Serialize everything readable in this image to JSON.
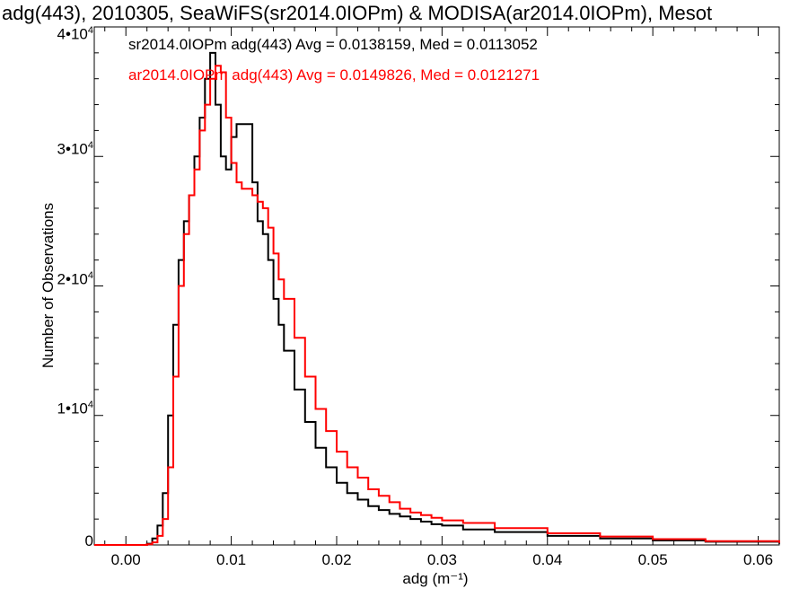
{
  "chart_data": {
    "type": "line",
    "title": "adg(443), 2010305, SeaWiFS(sr2014.0IOPm) & MODISA(ar2014.0IOPm), Mesot",
    "xlabel": "adg (m⁻¹)",
    "ylabel": "Number of Observations",
    "xlim": [
      -0.003,
      0.062
    ],
    "ylim": [
      0,
      40000
    ],
    "x_ticks": [
      "0.00",
      "0.01",
      "0.02",
      "0.03",
      "0.04",
      "0.05",
      "0.06"
    ],
    "y_ticks": [
      {
        "mantissa": "0",
        "exp": ""
      },
      {
        "mantissa": "1•10",
        "exp": "4"
      },
      {
        "mantissa": "2•10",
        "exp": "4"
      },
      {
        "mantissa": "3•10",
        "exp": "4"
      },
      {
        "mantissa": "4•10",
        "exp": "4"
      }
    ],
    "legend": {
      "placement": "top-left",
      "entries": [
        "sr2014.0IOPm adg(443) Avg = 0.0138159, Med = 0.0113052",
        "ar2014.0IOPm adg(443) Avg = 0.0149826, Med = 0.0121271"
      ]
    },
    "series": [
      {
        "color": "#000000",
        "x": [
          -0.003,
          0.002,
          0.0025,
          0.003,
          0.0035,
          0.004,
          0.0045,
          0.005,
          0.0055,
          0.006,
          0.0065,
          0.007,
          0.0075,
          0.008,
          0.0085,
          0.009,
          0.0095,
          0.01,
          0.0105,
          0.011,
          0.0115,
          0.012,
          0.0125,
          0.013,
          0.0135,
          0.014,
          0.0145,
          0.015,
          0.016,
          0.017,
          0.018,
          0.019,
          0.02,
          0.021,
          0.022,
          0.023,
          0.024,
          0.025,
          0.026,
          0.027,
          0.028,
          0.029,
          0.03,
          0.032,
          0.035,
          0.04,
          0.045,
          0.05,
          0.055,
          0.062
        ],
        "y": [
          0,
          100,
          500,
          1500,
          4000,
          10000,
          17000,
          22000,
          25000,
          27000,
          30000,
          33000,
          36000,
          38000,
          34000,
          30000,
          29000,
          31500,
          32500,
          32500,
          32500,
          28000,
          25000,
          24000,
          22000,
          19000,
          17000,
          15000,
          12000,
          9500,
          7500,
          6000,
          4800,
          4000,
          3500,
          3000,
          2700,
          2400,
          2200,
          2000,
          1800,
          1600,
          1500,
          1200,
          1000,
          700,
          500,
          350,
          250,
          100
        ]
      },
      {
        "color": "#ff0000",
        "x": [
          -0.003,
          0.002,
          0.0025,
          0.003,
          0.0035,
          0.004,
          0.0045,
          0.005,
          0.0055,
          0.006,
          0.0065,
          0.007,
          0.0075,
          0.008,
          0.0085,
          0.009,
          0.0095,
          0.01,
          0.0105,
          0.011,
          0.0115,
          0.012,
          0.0125,
          0.013,
          0.0135,
          0.014,
          0.0145,
          0.015,
          0.016,
          0.017,
          0.018,
          0.019,
          0.02,
          0.021,
          0.022,
          0.023,
          0.024,
          0.025,
          0.026,
          0.027,
          0.028,
          0.029,
          0.03,
          0.032,
          0.035,
          0.04,
          0.045,
          0.05,
          0.055,
          0.062
        ],
        "y": [
          0,
          50,
          200,
          700,
          2000,
          6000,
          13000,
          20000,
          24000,
          27000,
          29000,
          32000,
          34000,
          36000,
          37000,
          36500,
          33000,
          29500,
          28000,
          27500,
          27500,
          27000,
          26500,
          26000,
          24500,
          22500,
          20500,
          19000,
          16000,
          13000,
          10500,
          8800,
          7200,
          6000,
          5200,
          4300,
          3800,
          3300,
          2800,
          2500,
          2300,
          2100,
          1900,
          1700,
          1300,
          900,
          650,
          450,
          300,
          150
        ]
      }
    ]
  }
}
